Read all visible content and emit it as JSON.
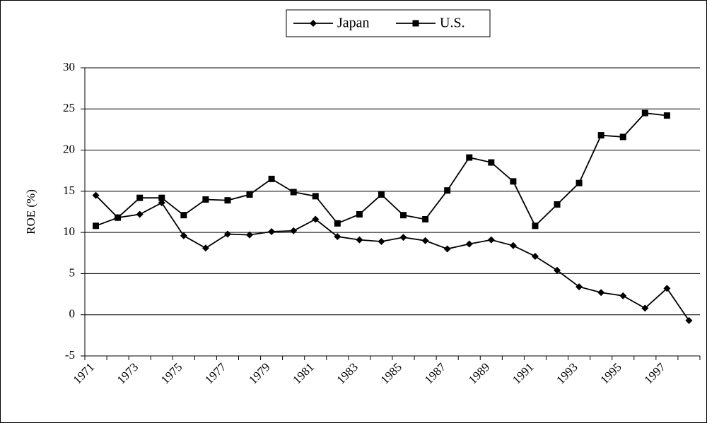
{
  "chart_data": {
    "type": "line",
    "y_label": "ROE (%)",
    "categories": [
      "1971",
      null,
      "1973",
      null,
      "1975",
      null,
      "1977",
      null,
      "1979",
      null,
      "1981",
      null,
      "1983",
      null,
      "1985",
      null,
      "1987",
      null,
      "1989",
      null,
      "1991",
      null,
      "1993",
      null,
      "1995",
      null,
      "1997",
      null
    ],
    "series": [
      {
        "name": "Japan",
        "color": "#000000",
        "marker": "diamond",
        "values": [
          14.5,
          11.8,
          12.2,
          13.6,
          9.6,
          8.1,
          9.8,
          9.7,
          10.1,
          10.2,
          11.6,
          9.5,
          9.1,
          8.9,
          9.4,
          9.0,
          8.0,
          8.6,
          9.1,
          8.4,
          7.1,
          5.4,
          3.4,
          2.7,
          2.3,
          0.8,
          3.2,
          -0.7
        ]
      },
      {
        "name": "U.S.",
        "color": "#000000",
        "marker": "square",
        "values": [
          10.8,
          11.8,
          14.2,
          14.2,
          12.1,
          14.0,
          13.9,
          14.6,
          16.5,
          14.9,
          14.4,
          11.1,
          12.2,
          14.6,
          12.1,
          11.6,
          15.1,
          19.1,
          18.5,
          16.2,
          10.8,
          13.4,
          16.0,
          21.8,
          21.6,
          24.5,
          24.2,
          null
        ]
      }
    ],
    "ylim": [
      -5,
      30
    ],
    "yticks": [
      -5,
      0,
      5,
      10,
      15,
      20,
      25,
      30
    ],
    "grid": true,
    "legend": "top"
  }
}
